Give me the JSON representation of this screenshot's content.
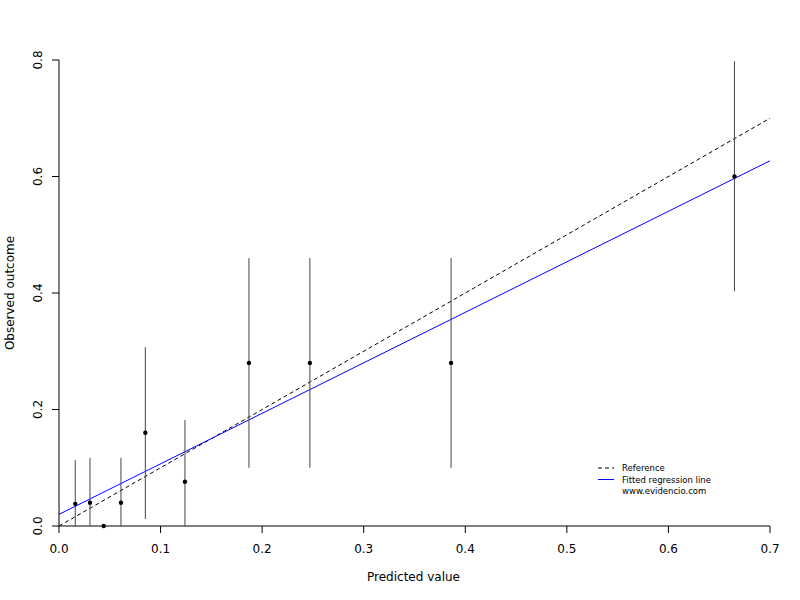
{
  "chart_data": {
    "type": "scatter",
    "x_label": "Predicted value",
    "y_label": "Observed outcome",
    "xlim": [
      0,
      0.7
    ],
    "ylim": [
      0,
      0.8
    ],
    "xticks": [
      {
        "value": 0,
        "label": "0.0"
      },
      0.1,
      0.2,
      0.3,
      0.4,
      0.5,
      0.6,
      0.7
    ],
    "yticks": [
      {
        "value": 0,
        "label": "0.0"
      },
      0.2,
      0.4,
      0.6,
      0.8
    ],
    "grid": false,
    "legend": "bottom-right",
    "annotations": [
      "www.evidencio.com"
    ],
    "series": [
      {
        "name": "Reference",
        "type": "line",
        "line_style": "dashed",
        "color": "#000000",
        "x": [
          0,
          0.7
        ],
        "values": [
          0,
          0.7
        ]
      },
      {
        "name": "Fitted regression line",
        "type": "line",
        "line_style": "solid",
        "color": "#0000ff",
        "x": [
          0,
          0.7
        ],
        "values": [
          0.02,
          0.627
        ]
      },
      {
        "type": "scatter",
        "marker": "circle",
        "color": "#000000",
        "x": [
          0.016,
          0.0305,
          0.044,
          0.061,
          0.085,
          0.124,
          0.187,
          0.247,
          0.386,
          0.665
        ],
        "values": [
          0.038,
          0.04,
          0,
          0.04,
          0.16,
          0.076,
          0.28,
          0.28,
          0.28,
          0.6
        ],
        "ci_lower": [
          0,
          0,
          0,
          0,
          0.012,
          0,
          0.1,
          0.1,
          0.1,
          0.403
        ],
        "ci_upper": [
          0.113,
          0.117,
          0,
          0.117,
          0.307,
          0.182,
          0.46,
          0.46,
          0.46,
          0.798
        ]
      }
    ]
  }
}
